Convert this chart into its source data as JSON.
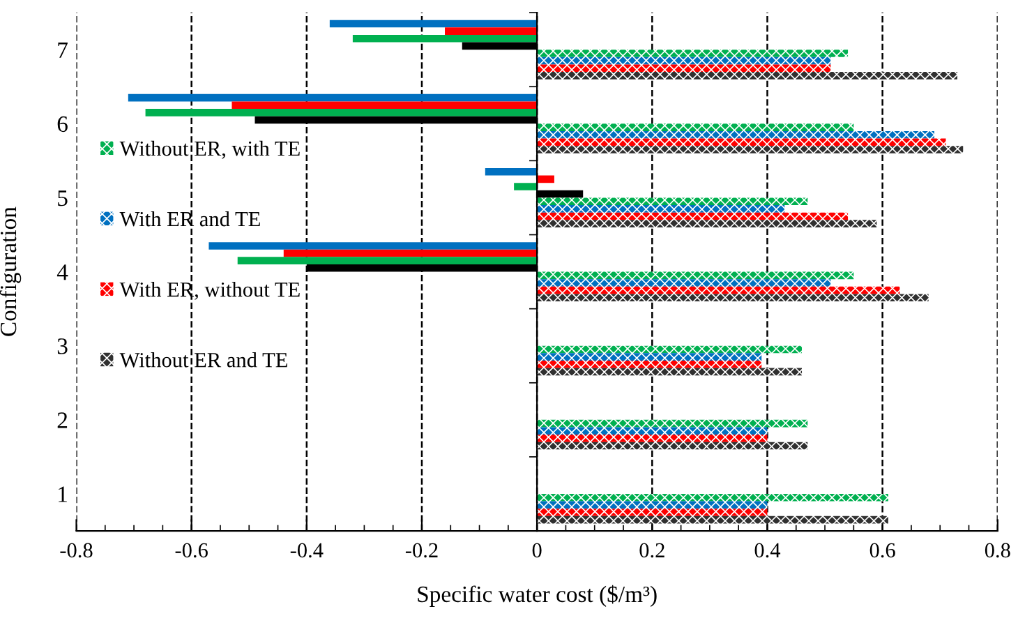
{
  "chart_data": {
    "type": "bar",
    "orientation": "horizontal",
    "xlabel": "Specific water cost ($/m³)",
    "ylabel": "Configuration",
    "categories": [
      "7",
      "6",
      "5",
      "4",
      "3",
      "2",
      "1"
    ],
    "series": [
      {
        "color": "#0070c0",
        "values": [
          -0.36,
          -0.71,
          -0.09,
          -0.57,
          null,
          null,
          null
        ]
      },
      {
        "color": "#ff0000",
        "values": [
          -0.16,
          -0.53,
          0.03,
          -0.44,
          null,
          null,
          null
        ]
      },
      {
        "color": "#00b050",
        "values": [
          -0.32,
          -0.68,
          -0.04,
          -0.52,
          null,
          null,
          null
        ]
      },
      {
        "color": "#000000",
        "values": [
          -0.13,
          -0.49,
          0.08,
          -0.4,
          null,
          null,
          null
        ]
      },
      {
        "name": "Without ER, with TE",
        "color": "#00b050",
        "values": [
          0.54,
          0.55,
          0.47,
          0.55,
          0.46,
          0.47,
          0.61
        ]
      },
      {
        "name": "With ER and TE",
        "color": "#0070c0",
        "values": [
          0.51,
          0.69,
          0.43,
          0.51,
          0.39,
          0.4,
          0.4
        ]
      },
      {
        "name": "With ER, without TE",
        "color": "#ff0000",
        "values": [
          0.51,
          0.71,
          0.54,
          0.63,
          0.39,
          0.4,
          0.4
        ]
      },
      {
        "name": "Without ER and TE",
        "color": "#303030",
        "values": [
          0.73,
          0.74,
          0.59,
          0.68,
          0.46,
          0.47,
          0.61
        ]
      }
    ],
    "xlim": [
      -0.8,
      0.8
    ],
    "xticks": [
      -0.8,
      -0.6,
      -0.4,
      -0.2,
      0,
      0.2,
      0.4,
      0.6,
      0.8
    ],
    "grid": "x",
    "legend": "left"
  }
}
